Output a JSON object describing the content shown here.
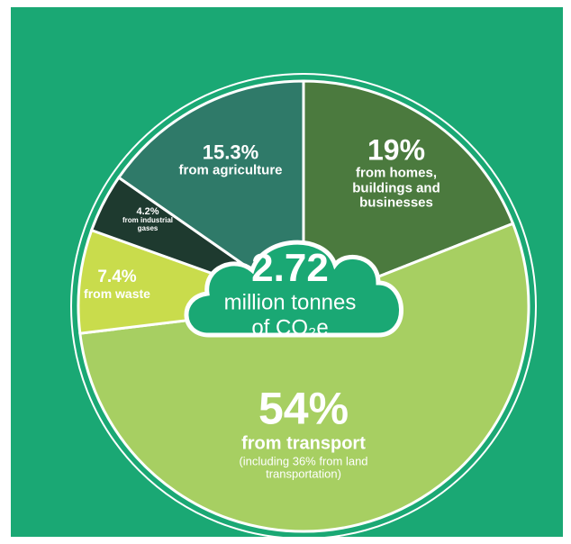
{
  "chart_data": {
    "type": "pie",
    "categories": [
      "from homes, buildings and businesses",
      "from transport",
      "from waste",
      "from industrial gases",
      "from agriculture"
    ],
    "values": [
      19,
      54,
      7.4,
      4.2,
      15.3
    ],
    "value_labels": [
      "19%",
      "54%",
      "7.4%",
      "4.2%",
      "15.3%"
    ],
    "colors": [
      "#4b7a3e",
      "#a7cf62",
      "#c9dc4c",
      "#1e3a2f",
      "#2f7a69"
    ],
    "annotations": [
      "(including 36% from land transportation)"
    ],
    "total": 2.72,
    "total_unit": "million tonnes of CO₂e"
  }
}
